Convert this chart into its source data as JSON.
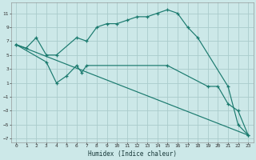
{
  "xlabel": "Humidex (Indice chaleur)",
  "bg_color": "#cce8e8",
  "grid_color": "#aacccc",
  "line_color": "#1a7a6e",
  "xlim": [
    -0.5,
    23.5
  ],
  "ylim": [
    -7.5,
    12.5
  ],
  "xticks": [
    0,
    1,
    2,
    3,
    4,
    5,
    6,
    7,
    8,
    9,
    10,
    11,
    12,
    13,
    14,
    15,
    16,
    17,
    18,
    19,
    20,
    21,
    22,
    23
  ],
  "yticks": [
    -7,
    -5,
    -3,
    -1,
    1,
    3,
    5,
    7,
    9,
    11
  ],
  "line1_x": [
    0,
    1,
    2,
    3,
    4,
    6,
    7,
    8,
    9,
    10,
    11,
    12,
    13,
    14,
    15,
    16,
    17,
    18,
    21,
    22,
    23
  ],
  "line1_y": [
    6.5,
    6.0,
    7.5,
    5.0,
    5.0,
    7.5,
    7.0,
    9.0,
    9.5,
    9.5,
    10.0,
    10.5,
    10.5,
    11.0,
    11.5,
    11.0,
    9.0,
    7.5,
    0.5,
    -5.0,
    -6.5
  ],
  "line2_x": [
    0,
    3,
    4,
    5,
    6,
    6.5,
    7,
    15,
    19,
    20,
    21,
    22,
    23
  ],
  "line2_y": [
    6.5,
    4.0,
    1.0,
    2.0,
    3.5,
    2.5,
    3.5,
    3.5,
    0.5,
    0.5,
    -2.0,
    -3.0,
    -6.5
  ],
  "line3_x": [
    0,
    23
  ],
  "line3_y": [
    6.5,
    -6.5
  ]
}
